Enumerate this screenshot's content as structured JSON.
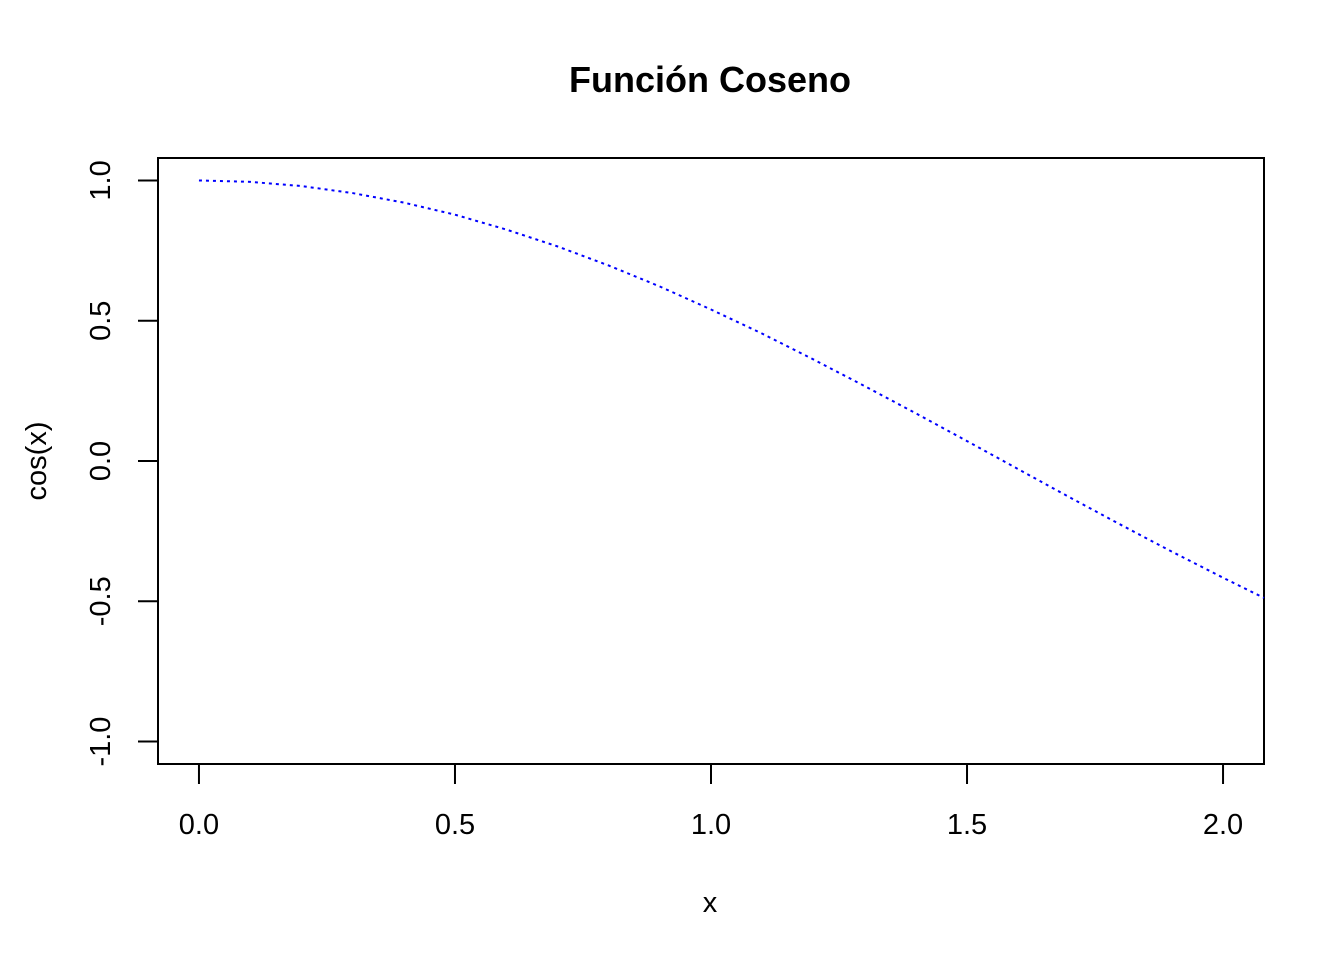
{
  "chart_data": {
    "type": "line",
    "title": "Función Coseno",
    "xlabel": "x",
    "ylabel": "cos(x)",
    "xlim": [
      -0.08,
      2.08
    ],
    "ylim": [
      -1.08,
      1.08
    ],
    "x_ticks": [
      0.0,
      0.5,
      1.0,
      1.5,
      2.0
    ],
    "x_tick_labels": [
      "0.0",
      "0.5",
      "1.0",
      "1.5",
      "2.0"
    ],
    "y_ticks": [
      -1.0,
      -0.5,
      0.0,
      0.5,
      1.0
    ],
    "y_tick_labels": [
      "-1.0",
      "-0.5",
      "0.0",
      "0.5",
      "1.0"
    ],
    "grid": false,
    "series": [
      {
        "color": "#0000ff",
        "line_style": "dotted",
        "x": [
          0.0,
          0.1,
          0.2,
          0.3,
          0.4,
          0.5,
          0.6,
          0.7,
          0.8,
          0.9,
          1.0,
          1.1,
          1.2,
          1.3,
          1.4,
          1.5,
          1.6,
          1.7,
          1.8,
          1.9,
          2.0,
          2.08
        ],
        "y": [
          1.0,
          0.995,
          0.98,
          0.955,
          0.921,
          0.878,
          0.825,
          0.765,
          0.697,
          0.622,
          0.54,
          0.454,
          0.362,
          0.267,
          0.17,
          0.071,
          -0.029,
          -0.129,
          -0.227,
          -0.323,
          -0.416,
          -0.488
        ]
      }
    ]
  }
}
